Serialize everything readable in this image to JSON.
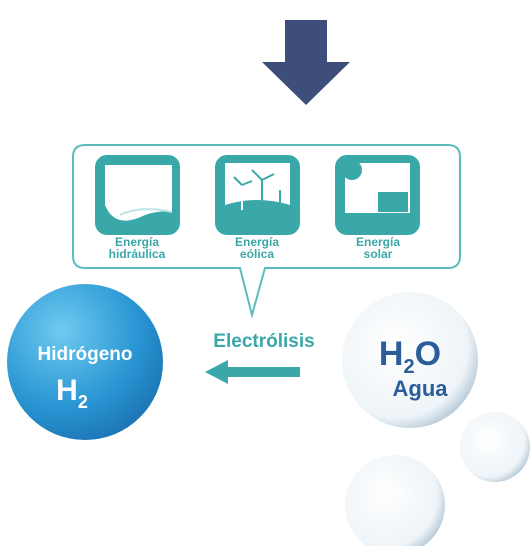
{
  "panels": [
    {
      "line1": "Energía",
      "line2": "hidráulica"
    },
    {
      "line1": "Energía",
      "line2": "eólica"
    },
    {
      "line1": "Energía",
      "line2": "solar"
    }
  ],
  "process": "Electrólisis",
  "product": {
    "name": "Hidrógeno",
    "symbol": "H",
    "subscript": "2"
  },
  "source": {
    "symbol1": "H",
    "subscript": "2",
    "symbol2": "O",
    "name": "Agua"
  }
}
